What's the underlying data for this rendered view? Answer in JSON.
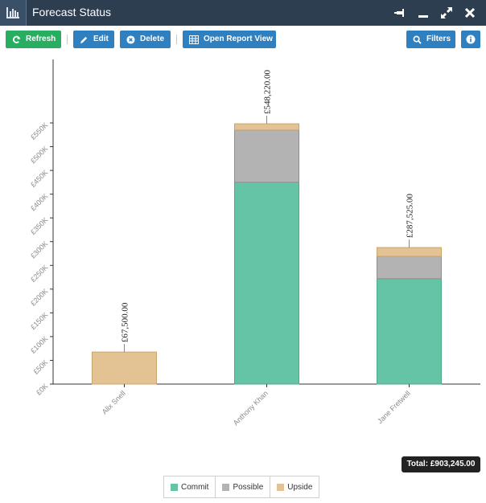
{
  "window": {
    "title": "Forecast Status"
  },
  "toolbar": {
    "refresh_label": "Refresh",
    "edit_label": "Edit",
    "delete_label": "Delete",
    "open_report_label": "Open Report View",
    "filters_label": "Filters"
  },
  "colors": {
    "titlebar": "#2d3e50",
    "green_button": "#27ae60",
    "blue_button": "#2f80c1",
    "commit": "#65c4a5",
    "possible": "#b3b3b3",
    "upside": "#e3c393"
  },
  "chart_data": {
    "type": "bar",
    "stacked": true,
    "categories": [
      "Alix Snell",
      "Anthony Khan",
      "Jane Fretwell"
    ],
    "series": [
      {
        "name": "Commit",
        "values": [
          0,
          425000,
          222000
        ]
      },
      {
        "name": "Possible",
        "values": [
          0,
          110000,
          47000
        ]
      },
      {
        "name": "Upside",
        "values": [
          67500,
          13220,
          18525
        ]
      }
    ],
    "totals_labels": [
      "£67,500.00",
      "£548,220.00",
      "£287,525.00"
    ],
    "totals": [
      67500,
      548220,
      287525
    ],
    "y_ticks": [
      0,
      50000,
      100000,
      150000,
      200000,
      250000,
      300000,
      350000,
      400000,
      450000,
      500000,
      550000
    ],
    "y_tick_labels": [
      "£0K",
      "£50K",
      "£100K",
      "£150K",
      "£200K",
      "£250K",
      "£300K",
      "£350K",
      "£400K",
      "£450K",
      "£500K",
      "£550K"
    ],
    "ylim": [
      0,
      700000
    ],
    "grid": false,
    "legend": "bottom-center"
  },
  "summary": {
    "total_label": "Total: £903,245.00"
  },
  "legend": {
    "items": [
      "Commit",
      "Possible",
      "Upside"
    ]
  }
}
